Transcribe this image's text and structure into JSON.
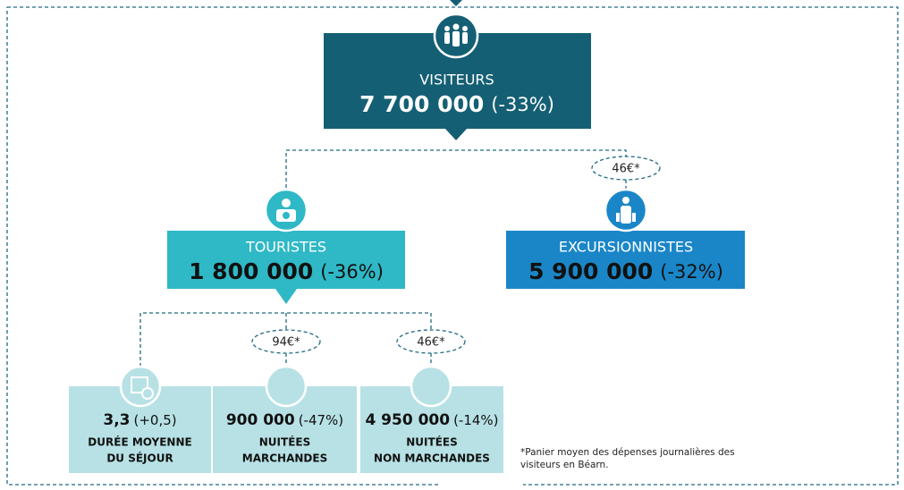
{
  "visiteurs": {
    "label": "VISITEURS",
    "value": "7 700 000",
    "change": "(-33%)"
  },
  "touristes": {
    "label": "TOURISTES",
    "value": "1 800 000",
    "change": "(-36%)"
  },
  "excursionnistes": {
    "label": "EXCURSIONNISTES",
    "value": "5 900 000",
    "change": "(-32%)",
    "spending": "46€*"
  },
  "sejours": [
    {
      "value": "3,3",
      "change": "(+0,5)",
      "label": [
        "DURÉE MOYENNE",
        "DU SÉJOUR"
      ]
    },
    {
      "value": "900 000",
      "change": "(-47%)",
      "label": [
        "NUITÉES",
        "MARCHANDES"
      ],
      "spending": "94€*"
    },
    {
      "value": "4 950 000",
      "change": "(-14%)",
      "label": [
        "NUITÉES",
        "NON MARCHANDES"
      ],
      "spending": "46€*"
    }
  ],
  "footnote": [
    "*Panier moyen des dépenses journalières des",
    "visiteurs en Béarn."
  ]
}
